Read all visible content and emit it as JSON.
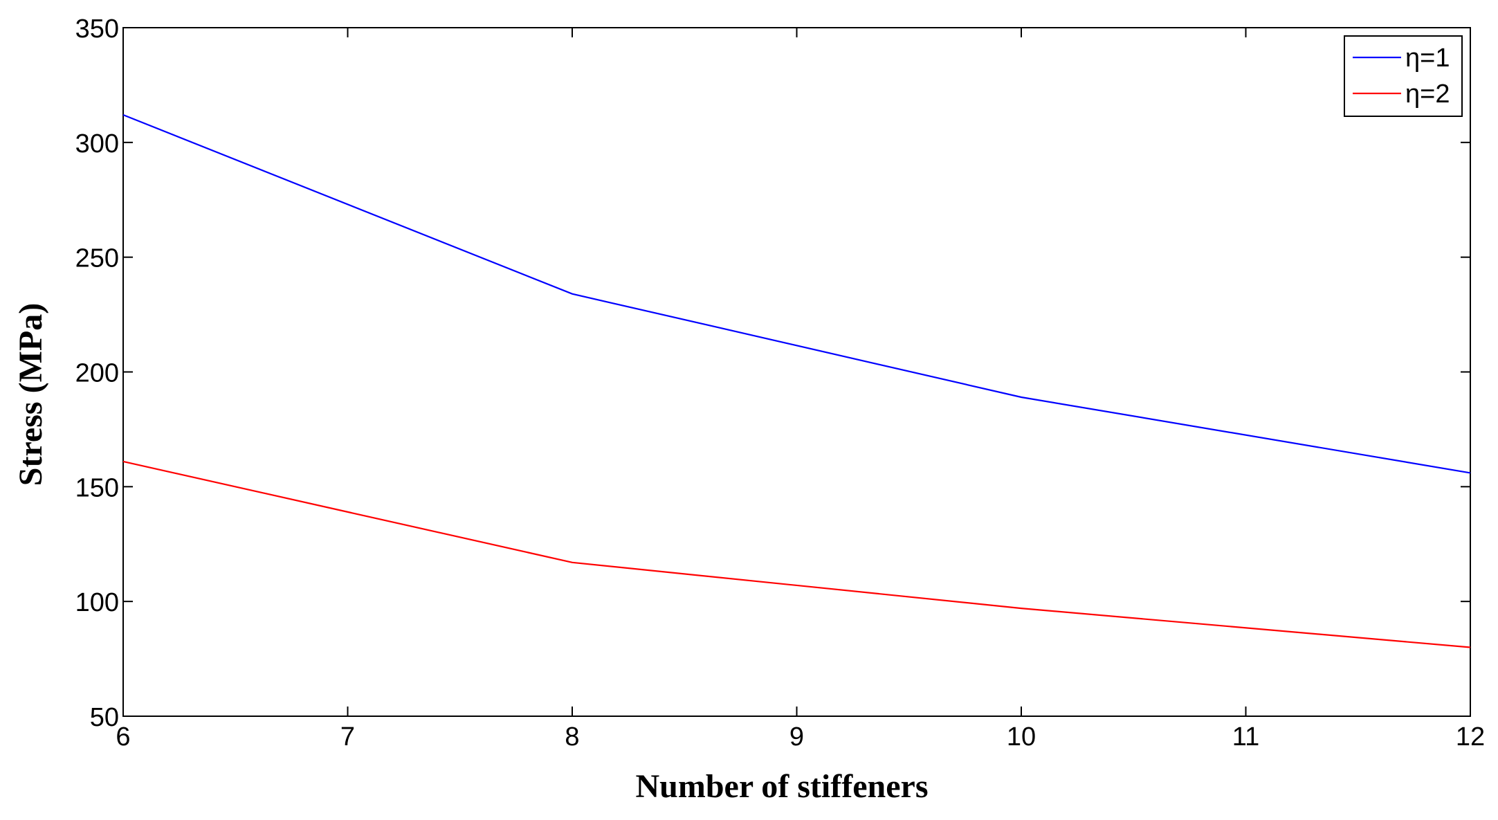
{
  "chart_data": {
    "type": "line",
    "title": "",
    "xlabel": "Number of stiffeners",
    "ylabel": "Stress (MPa)",
    "xlim": [
      6,
      12
    ],
    "ylim": [
      50,
      350
    ],
    "xticks": [
      "6",
      "7",
      "8",
      "9",
      "10",
      "11",
      "12"
    ],
    "yticks": [
      "50",
      "100",
      "150",
      "200",
      "250",
      "300",
      "350"
    ],
    "grid": false,
    "legend_position": "top-right",
    "x": [
      6,
      8,
      10,
      12
    ],
    "series": [
      {
        "name": "η=1",
        "color": "#0000ff",
        "values": [
          312,
          234,
          189,
          156
        ]
      },
      {
        "name": "η=2",
        "color": "#ff0000",
        "values": [
          161,
          117,
          97,
          80
        ]
      }
    ]
  }
}
